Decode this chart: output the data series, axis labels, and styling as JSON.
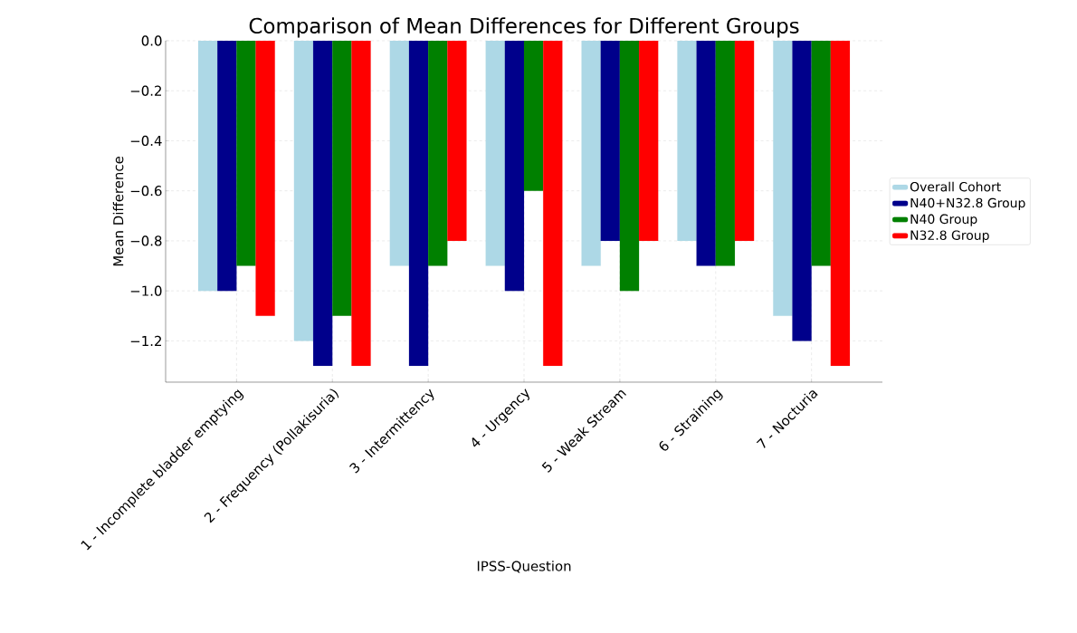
{
  "chart_data": {
    "type": "bar",
    "title": "Comparison of Mean Differences for Different Groups",
    "xlabel": "IPSS-Question",
    "ylabel": "Mean Difference",
    "categories": [
      "1 - Incomplete bladder emptying",
      "2 - Frequency (Pollakisuria)",
      "3 - Intermittency",
      "4 - Urgency",
      "5 - Weak Stream",
      "6 - Straining",
      "7 - Nocturia"
    ],
    "series": [
      {
        "name": "Overall Cohort",
        "color": "#add8e6",
        "values": [
          -1.0,
          -1.2,
          -0.9,
          -0.9,
          -0.9,
          -0.8,
          -1.1
        ]
      },
      {
        "name": "N40+N32.8 Group",
        "color": "#00008b",
        "values": [
          -1.0,
          -1.3,
          -1.3,
          -1.0,
          -0.8,
          -0.9,
          -1.2
        ]
      },
      {
        "name": "N40 Group",
        "color": "#008000",
        "values": [
          -0.9,
          -1.1,
          -0.9,
          -0.6,
          -1.0,
          -0.9,
          -0.9
        ]
      },
      {
        "name": "N32.8 Group",
        "color": "#ff0000",
        "values": [
          -1.1,
          -1.3,
          -0.8,
          -1.3,
          -0.8,
          -0.8,
          -1.3
        ]
      }
    ],
    "ylim": [
      -1.365,
      0
    ],
    "yticks": [
      {
        "value": 0,
        "label": "0.0"
      },
      {
        "value": -0.2,
        "label": "−0.2"
      },
      {
        "value": -0.4,
        "label": "−0.4"
      },
      {
        "value": -0.6,
        "label": "−0.6"
      },
      {
        "value": -0.8,
        "label": "−0.8"
      },
      {
        "value": -1.0,
        "label": "−1.0"
      },
      {
        "value": -1.2,
        "label": "−1.2"
      }
    ],
    "grid": true,
    "legend": "right"
  }
}
